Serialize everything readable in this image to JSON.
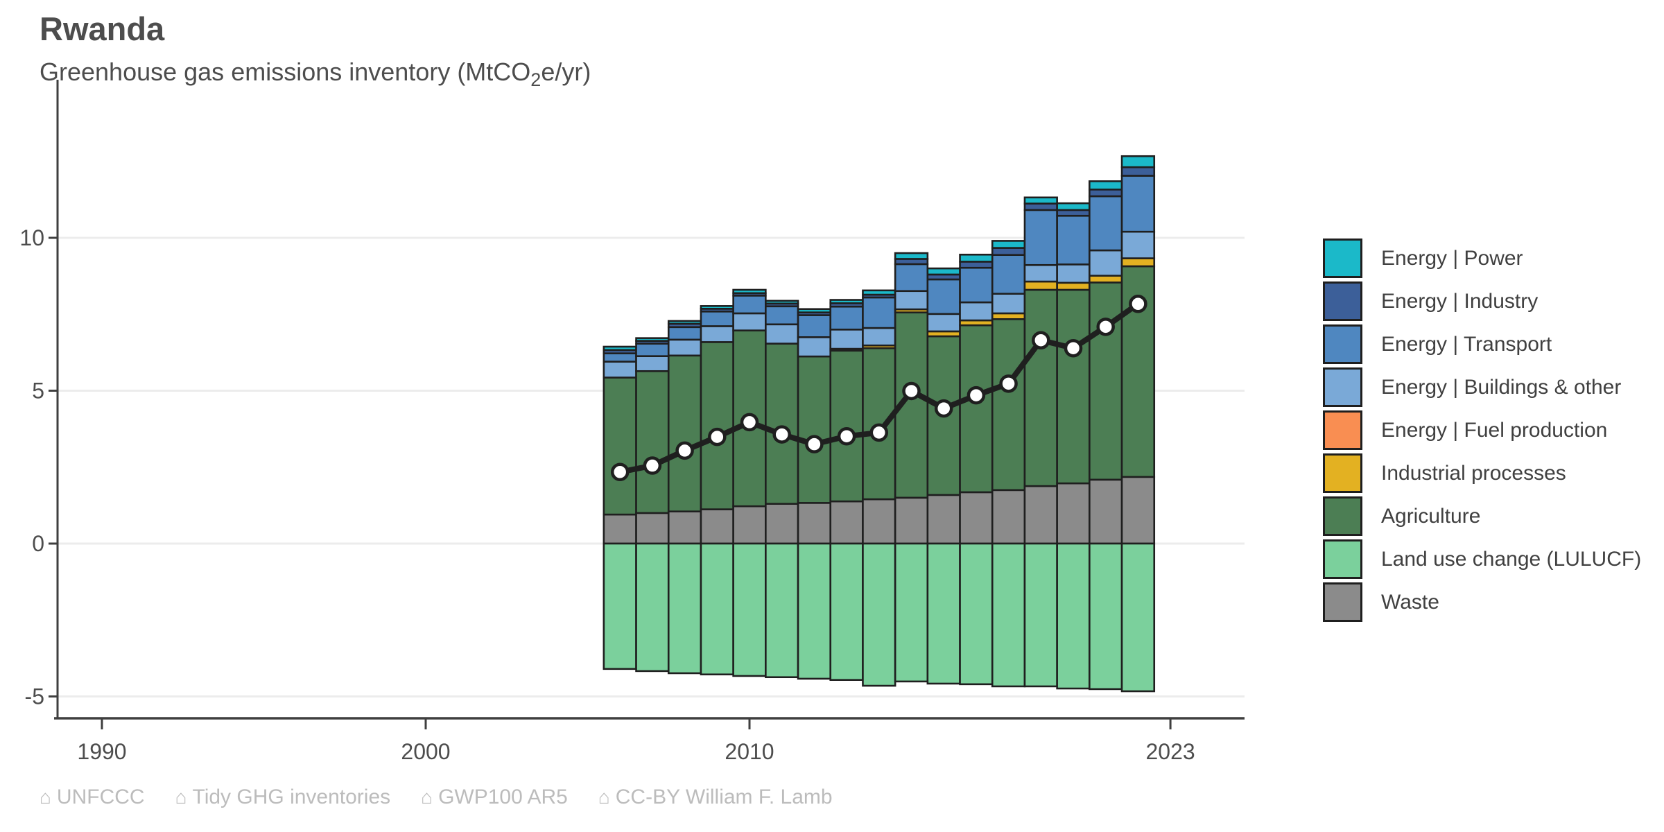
{
  "header": {
    "title": "Rwanda",
    "subtitle_pre": "Greenhouse gas emissions inventory (MtCO",
    "subtitle_sub": "2",
    "subtitle_post": "e/yr)"
  },
  "legend": {
    "items": [
      {
        "label": "Energy | Power",
        "color": "#1bb9c9"
      },
      {
        "label": "Energy | Industry",
        "color": "#3c5f99"
      },
      {
        "label": "Energy | Transport",
        "color": "#4f87c0"
      },
      {
        "label": "Energy | Buildings & other",
        "color": "#7aa9d7"
      },
      {
        "label": "Energy | Fuel production",
        "color": "#f98e52"
      },
      {
        "label": "Industrial processes",
        "color": "#e3b122"
      },
      {
        "label": "Agriculture",
        "color": "#4c7e54"
      },
      {
        "label": "Land use change (LULUCF)",
        "color": "#7bd09c"
      },
      {
        "label": "Waste",
        "color": "#8b8b8b"
      }
    ]
  },
  "footer": {
    "icon": "⌂",
    "sources": [
      "UNFCCC",
      "Tidy GHG inventories",
      "GWP100 AR5",
      "CC-BY William F. Lamb"
    ]
  },
  "chart_data": {
    "type": "bar",
    "stacked": true,
    "line_overlay": true,
    "title": "Rwanda",
    "subtitle": "Greenhouse gas emissions inventory (MtCO2e/yr)",
    "xlabel": "",
    "ylabel": "",
    "grid": "horizontal",
    "legend_position": "right",
    "yticks": [
      -5,
      0,
      5,
      10
    ],
    "xticks": [
      1990,
      2000,
      2010,
      2023
    ],
    "ylim": [
      -5.7,
      15.1
    ],
    "xlim": [
      1988.6,
      2025.3
    ],
    "years": [
      2006,
      2007,
      2008,
      2009,
      2010,
      2011,
      2012,
      2013,
      2014,
      2015,
      2016,
      2017,
      2018,
      2019,
      2020,
      2021,
      2022
    ],
    "bar_outline": "#1f1f1f",
    "series": [
      {
        "name": "Waste",
        "color": "#8b8b8b",
        "values": [
          0.95,
          1.0,
          1.05,
          1.12,
          1.22,
          1.3,
          1.33,
          1.38,
          1.45,
          1.5,
          1.59,
          1.68,
          1.75,
          1.88,
          1.97,
          2.09,
          2.18
        ]
      },
      {
        "name": "Agriculture",
        "color": "#4c7e54",
        "values": [
          4.48,
          4.64,
          5.1,
          5.47,
          5.75,
          5.24,
          4.79,
          4.93,
          4.94,
          6.06,
          5.19,
          5.46,
          5.59,
          6.42,
          6.33,
          6.45,
          6.89
        ]
      },
      {
        "name": "Industrial processes",
        "color": "#e3b122",
        "values": [
          0,
          0,
          0,
          0,
          0,
          0,
          0,
          0.06,
          0.09,
          0.1,
          0.16,
          0.16,
          0.19,
          0.27,
          0.23,
          0.22,
          0.26
        ]
      },
      {
        "name": "Energy | Fuel production",
        "color": "#f98e52",
        "values": [
          0,
          0,
          0,
          0,
          0,
          0,
          0,
          0,
          0,
          0,
          0,
          0,
          0,
          0,
          0,
          0,
          0
        ]
      },
      {
        "name": "Energy | Buildings & other",
        "color": "#7aa9d7",
        "values": [
          0.52,
          0.49,
          0.52,
          0.52,
          0.56,
          0.63,
          0.63,
          0.63,
          0.57,
          0.6,
          0.57,
          0.59,
          0.64,
          0.54,
          0.6,
          0.83,
          0.87
        ]
      },
      {
        "name": "Energy | Transport",
        "color": "#4f87c0",
        "values": [
          0.27,
          0.41,
          0.41,
          0.48,
          0.58,
          0.59,
          0.72,
          0.75,
          1.0,
          0.88,
          1.13,
          1.13,
          1.27,
          1.8,
          1.59,
          1.77,
          1.83
        ]
      },
      {
        "name": "Energy | Industry",
        "color": "#3c5f99",
        "values": [
          0.11,
          0.09,
          0.11,
          0.09,
          0.08,
          0.09,
          0.09,
          0.11,
          0.09,
          0.17,
          0.16,
          0.2,
          0.23,
          0.21,
          0.19,
          0.22,
          0.28
        ]
      },
      {
        "name": "Energy | Power",
        "color": "#1bb9c9",
        "values": [
          0.11,
          0.09,
          0.09,
          0.09,
          0.11,
          0.09,
          0.11,
          0.11,
          0.14,
          0.19,
          0.2,
          0.23,
          0.23,
          0.2,
          0.22,
          0.27,
          0.36
        ]
      },
      {
        "name": "Land use change (LULUCF)",
        "color": "#7bd09c",
        "values": [
          -4.1,
          -4.17,
          -4.24,
          -4.28,
          -4.33,
          -4.37,
          -4.42,
          -4.46,
          -4.65,
          -4.51,
          -4.58,
          -4.6,
          -4.67,
          -4.67,
          -4.74,
          -4.76,
          -4.83
        ]
      }
    ],
    "net_total": {
      "color": "#1f1f1f",
      "marker": "white-circle",
      "values": [
        2.34,
        2.55,
        3.04,
        3.49,
        3.97,
        3.57,
        3.25,
        3.51,
        3.63,
        4.99,
        4.42,
        4.85,
        5.23,
        6.65,
        6.39,
        7.09,
        7.84
      ]
    }
  }
}
